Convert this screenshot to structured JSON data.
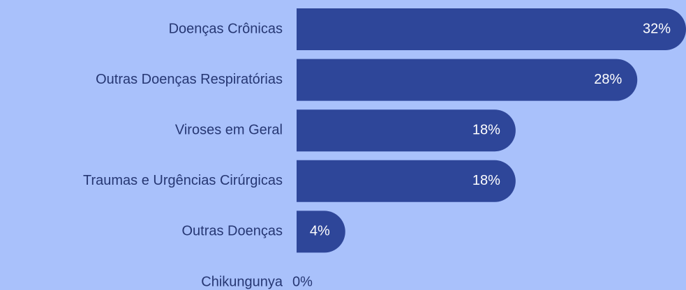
{
  "chart_data": {
    "type": "bar",
    "orientation": "horizontal",
    "categories": [
      "Doenças Crônicas",
      "Outras Doenças Respiratórias",
      "Viroses em Geral",
      "Traumas e Urgências Cirúrgicas",
      "Outras Doenças",
      "Chikungunya"
    ],
    "values": [
      32,
      28,
      18,
      18,
      4,
      0
    ],
    "value_labels": [
      "32%",
      "28%",
      "18%",
      "18%",
      "4%",
      "0%"
    ],
    "color": "#2e4699"
  }
}
